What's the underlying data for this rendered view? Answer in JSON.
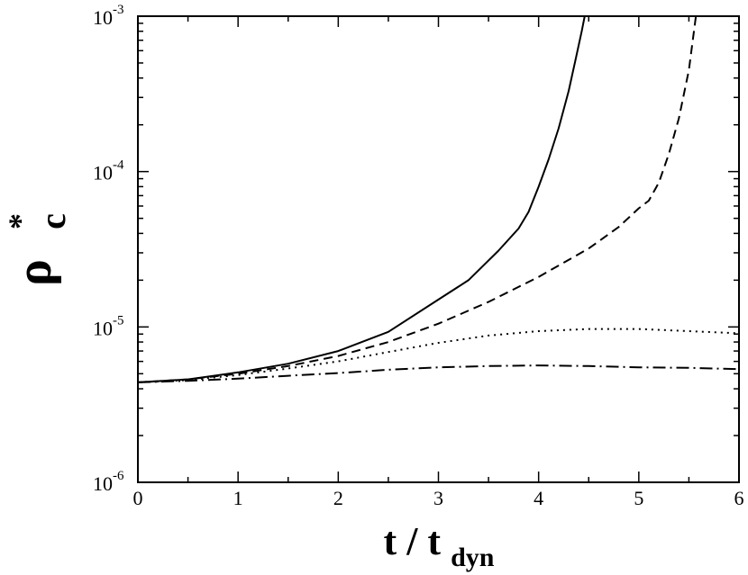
{
  "chart_data": {
    "type": "line",
    "title": "",
    "xlabel": {
      "main": "t / t",
      "subscript": "dyn"
    },
    "ylabel": {
      "main": "ρ",
      "superscript": "*",
      "subscript": "c"
    },
    "xlim": [
      0,
      6
    ],
    "ylim": [
      1e-06,
      0.001
    ],
    "yscale": "log",
    "grid": false,
    "legend": "none",
    "x_ticks": [
      {
        "value": 0,
        "label": "0"
      },
      {
        "value": 1,
        "label": "1"
      },
      {
        "value": 2,
        "label": "2"
      },
      {
        "value": 3,
        "label": "3"
      },
      {
        "value": 4,
        "label": "4"
      },
      {
        "value": 5,
        "label": "5"
      },
      {
        "value": 6,
        "label": "6"
      }
    ],
    "y_ticks": [
      {
        "value": 1e-06,
        "base": "10",
        "exponent": "-6"
      },
      {
        "value": 1e-05,
        "base": "10",
        "exponent": "-5"
      },
      {
        "value": 0.0001,
        "base": "10",
        "exponent": "-4"
      },
      {
        "value": 0.001,
        "base": "10",
        "exponent": "-3"
      }
    ],
    "series": [
      {
        "style": "solid",
        "x": [
          0,
          0.5,
          1.0,
          1.5,
          2.0,
          2.5,
          3.0,
          3.3,
          3.6,
          3.8,
          3.9,
          4.0,
          4.1,
          4.2,
          4.3,
          4.37,
          4.43,
          4.46
        ],
        "y": [
          4.4e-06,
          4.6e-06,
          5.1e-06,
          5.8e-06,
          7e-06,
          9.3e-06,
          1.5e-05,
          2e-05,
          3.1e-05,
          4.3e-05,
          5.5e-05,
          8e-05,
          0.00012,
          0.00019,
          0.00033,
          0.00053,
          0.0008,
          0.001
        ]
      },
      {
        "style": "dashed",
        "x": [
          0,
          0.5,
          1.0,
          1.5,
          2.0,
          2.5,
          3.0,
          3.5,
          4.0,
          4.5,
          4.8,
          5.0,
          5.1,
          5.2,
          5.3,
          5.4,
          5.5,
          5.57
        ],
        "y": [
          4.4e-06,
          4.6e-06,
          5e-06,
          5.6e-06,
          6.5e-06,
          8e-06,
          1.05e-05,
          1.45e-05,
          2.1e-05,
          3.2e-05,
          4.4e-05,
          5.8e-05,
          6.5e-05,
          8.5e-05,
          0.00013,
          0.00022,
          0.00045,
          0.001
        ]
      },
      {
        "style": "dotted",
        "x": [
          0,
          0.5,
          1.0,
          1.5,
          2.0,
          2.5,
          3.0,
          3.5,
          4.0,
          4.5,
          5.0,
          5.5,
          6.0
        ],
        "y": [
          4.4e-06,
          4.55e-06,
          4.9e-06,
          5.4e-06,
          6e-06,
          6.9e-06,
          7.9e-06,
          8.8e-06,
          9.4e-06,
          9.7e-06,
          9.7e-06,
          9.4e-06,
          9.1e-06
        ]
      },
      {
        "style": "dashdot",
        "x": [
          0,
          0.5,
          1.0,
          1.5,
          2.0,
          2.5,
          3.0,
          3.5,
          4.0,
          4.5,
          5.0,
          5.5,
          6.0
        ],
        "y": [
          4.4e-06,
          4.5e-06,
          4.65e-06,
          4.85e-06,
          5.05e-06,
          5.3e-06,
          5.5e-06,
          5.6e-06,
          5.65e-06,
          5.6e-06,
          5.5e-06,
          5.45e-06,
          5.35e-06
        ]
      }
    ]
  }
}
